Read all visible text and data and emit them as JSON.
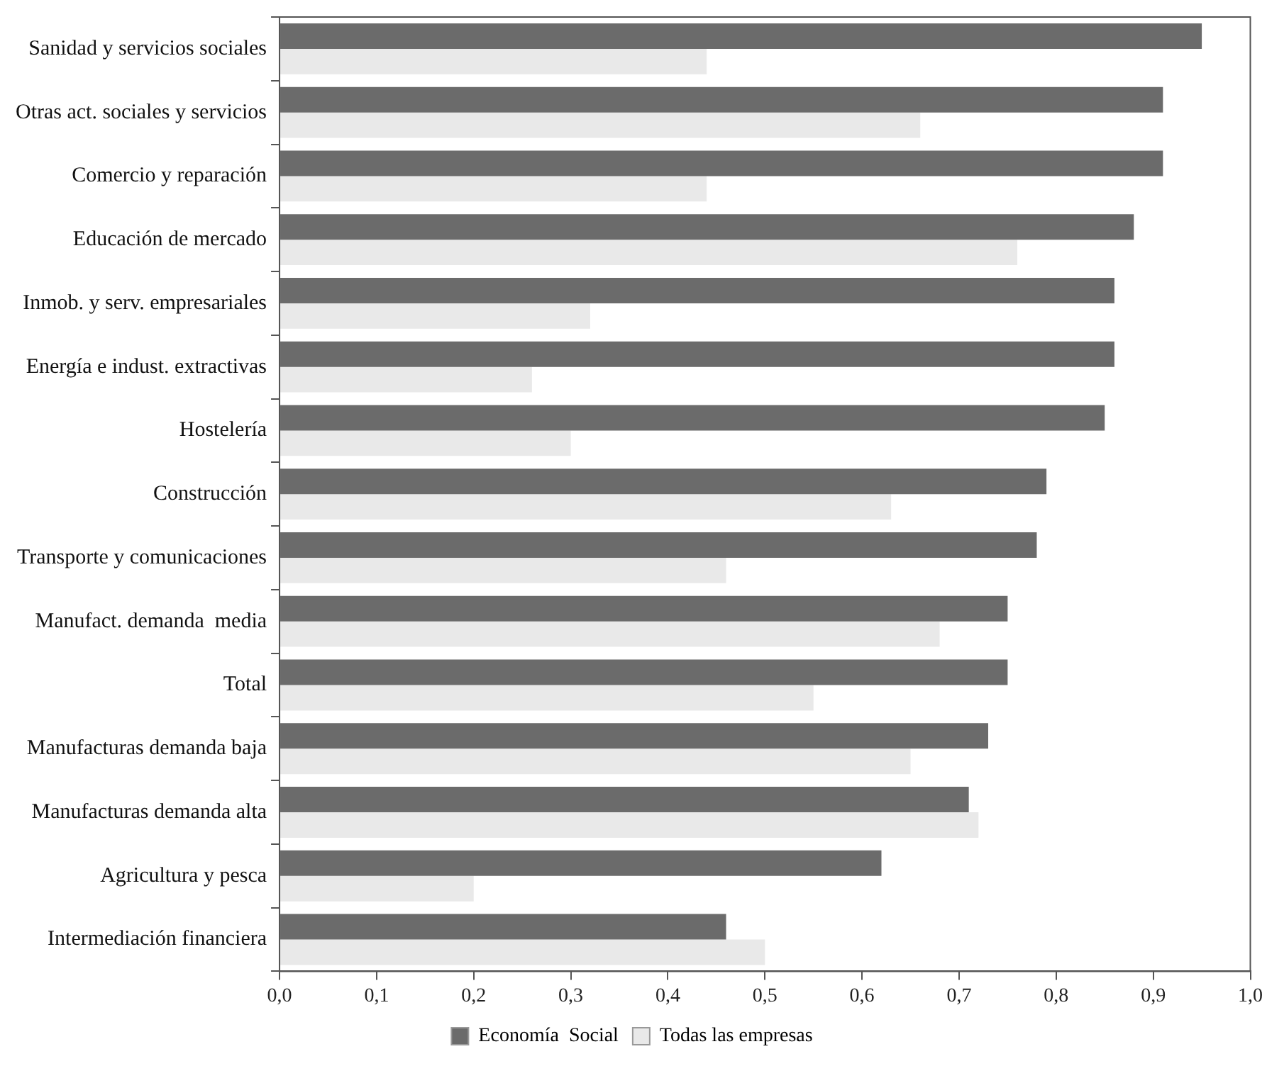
{
  "chart_data": {
    "type": "bar",
    "orientation": "horizontal",
    "categories": [
      "Sanidad y servicios sociales",
      "Otras act. sociales y servicios",
      "Comercio y reparación",
      "Educación de mercado",
      "Inmob. y serv. empresariales",
      "Energía e indust. extractivas",
      "Hostelería",
      "Construcción",
      "Transporte y comunicaciones",
      "Manufact. demanda  media",
      "Total",
      "Manufacturas demanda baja",
      "Manufacturas demanda alta",
      "Agricultura y pesca",
      "Intermediación financiera"
    ],
    "series": [
      {
        "name": "Economía  Social",
        "color": "#6b6b6b",
        "values": [
          0.95,
          0.91,
          0.91,
          0.88,
          0.86,
          0.86,
          0.85,
          0.79,
          0.78,
          0.75,
          0.75,
          0.73,
          0.71,
          0.62,
          0.46
        ]
      },
      {
        "name": "Todas las empresas",
        "color": "#e9e9e9",
        "values": [
          0.44,
          0.66,
          0.44,
          0.76,
          0.32,
          0.26,
          0.3,
          0.63,
          0.46,
          0.68,
          0.55,
          0.65,
          0.72,
          0.2,
          0.5
        ]
      }
    ],
    "xlim": [
      0,
      1
    ],
    "xticks": [
      {
        "value": 0,
        "label": "0,0"
      },
      {
        "value": 0.1,
        "label": "0,1"
      },
      {
        "value": 0.2,
        "label": "0,2"
      },
      {
        "value": 0.3,
        "label": "0,3"
      },
      {
        "value": 0.4,
        "label": "0,4"
      },
      {
        "value": 0.5,
        "label": "0,5"
      },
      {
        "value": 0.6,
        "label": "0,6"
      },
      {
        "value": 0.7,
        "label": "0,7"
      },
      {
        "value": 0.8,
        "label": "0,8"
      },
      {
        "value": 0.9,
        "label": "0,9"
      },
      {
        "value": 1,
        "label": "1,0"
      }
    ],
    "grid": false,
    "legend": "bottom"
  }
}
